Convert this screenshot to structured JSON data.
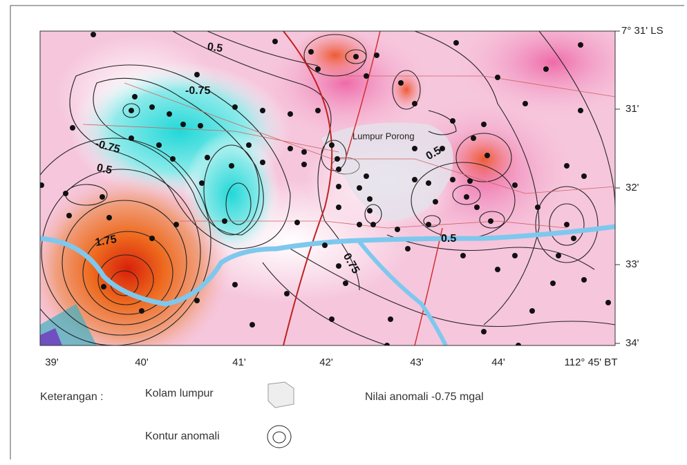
{
  "map": {
    "lat_labels": [
      "7° 31' LS",
      "31'",
      "32'",
      "33'",
      "34'"
    ],
    "lon_labels": [
      "39'",
      "40'",
      "41'",
      "42'",
      "43'",
      "44'",
      "112° 45' BT"
    ],
    "contour_labels": [
      "0.5",
      "-0.75",
      "-0.75",
      "0.5",
      "1.75",
      "0.75",
      "0.5",
      "0.5"
    ],
    "place_labels": [
      "Lumpur Porong"
    ]
  },
  "legend": {
    "heading": "Keterangan :",
    "mud_pond": "Kolam lumpur",
    "anomaly_value": "Nilai anomali  -0.75 mgal",
    "contour": "Kontur anomali"
  }
}
